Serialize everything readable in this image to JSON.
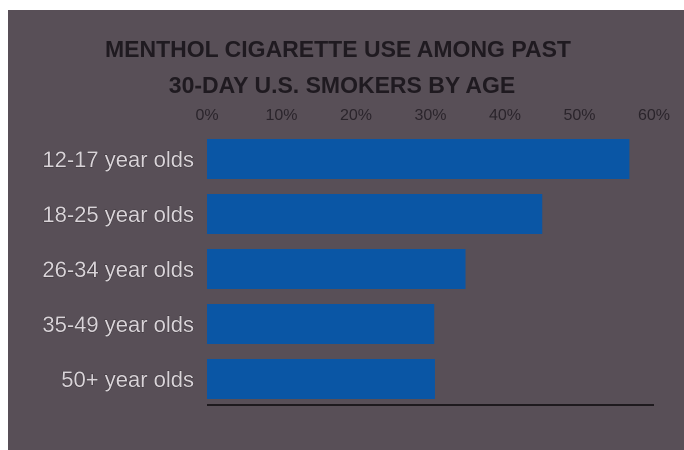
{
  "chart_data": {
    "type": "bar",
    "orientation": "horizontal",
    "title_lines": [
      "MENTHOL CIGARETTE USE AMONG PAST",
      "30-DAY U.S. SMOKERS BY  AGE"
    ],
    "categories": [
      "12-17 year olds",
      "18-25 year olds",
      "26-34 year olds",
      "35-49 year olds",
      "50+ year olds"
    ],
    "values": [
      56.7,
      45.0,
      34.7,
      30.5,
      30.6
    ],
    "x_ticks": [
      "0%",
      "10%",
      "20%",
      "30%",
      "40%",
      "50%",
      "60%"
    ],
    "xlim": [
      0,
      60
    ],
    "x_axis_position": "top",
    "grid": false,
    "legend": "none",
    "colors": {
      "bar": "#0a56a5",
      "background": "#584f57"
    }
  }
}
